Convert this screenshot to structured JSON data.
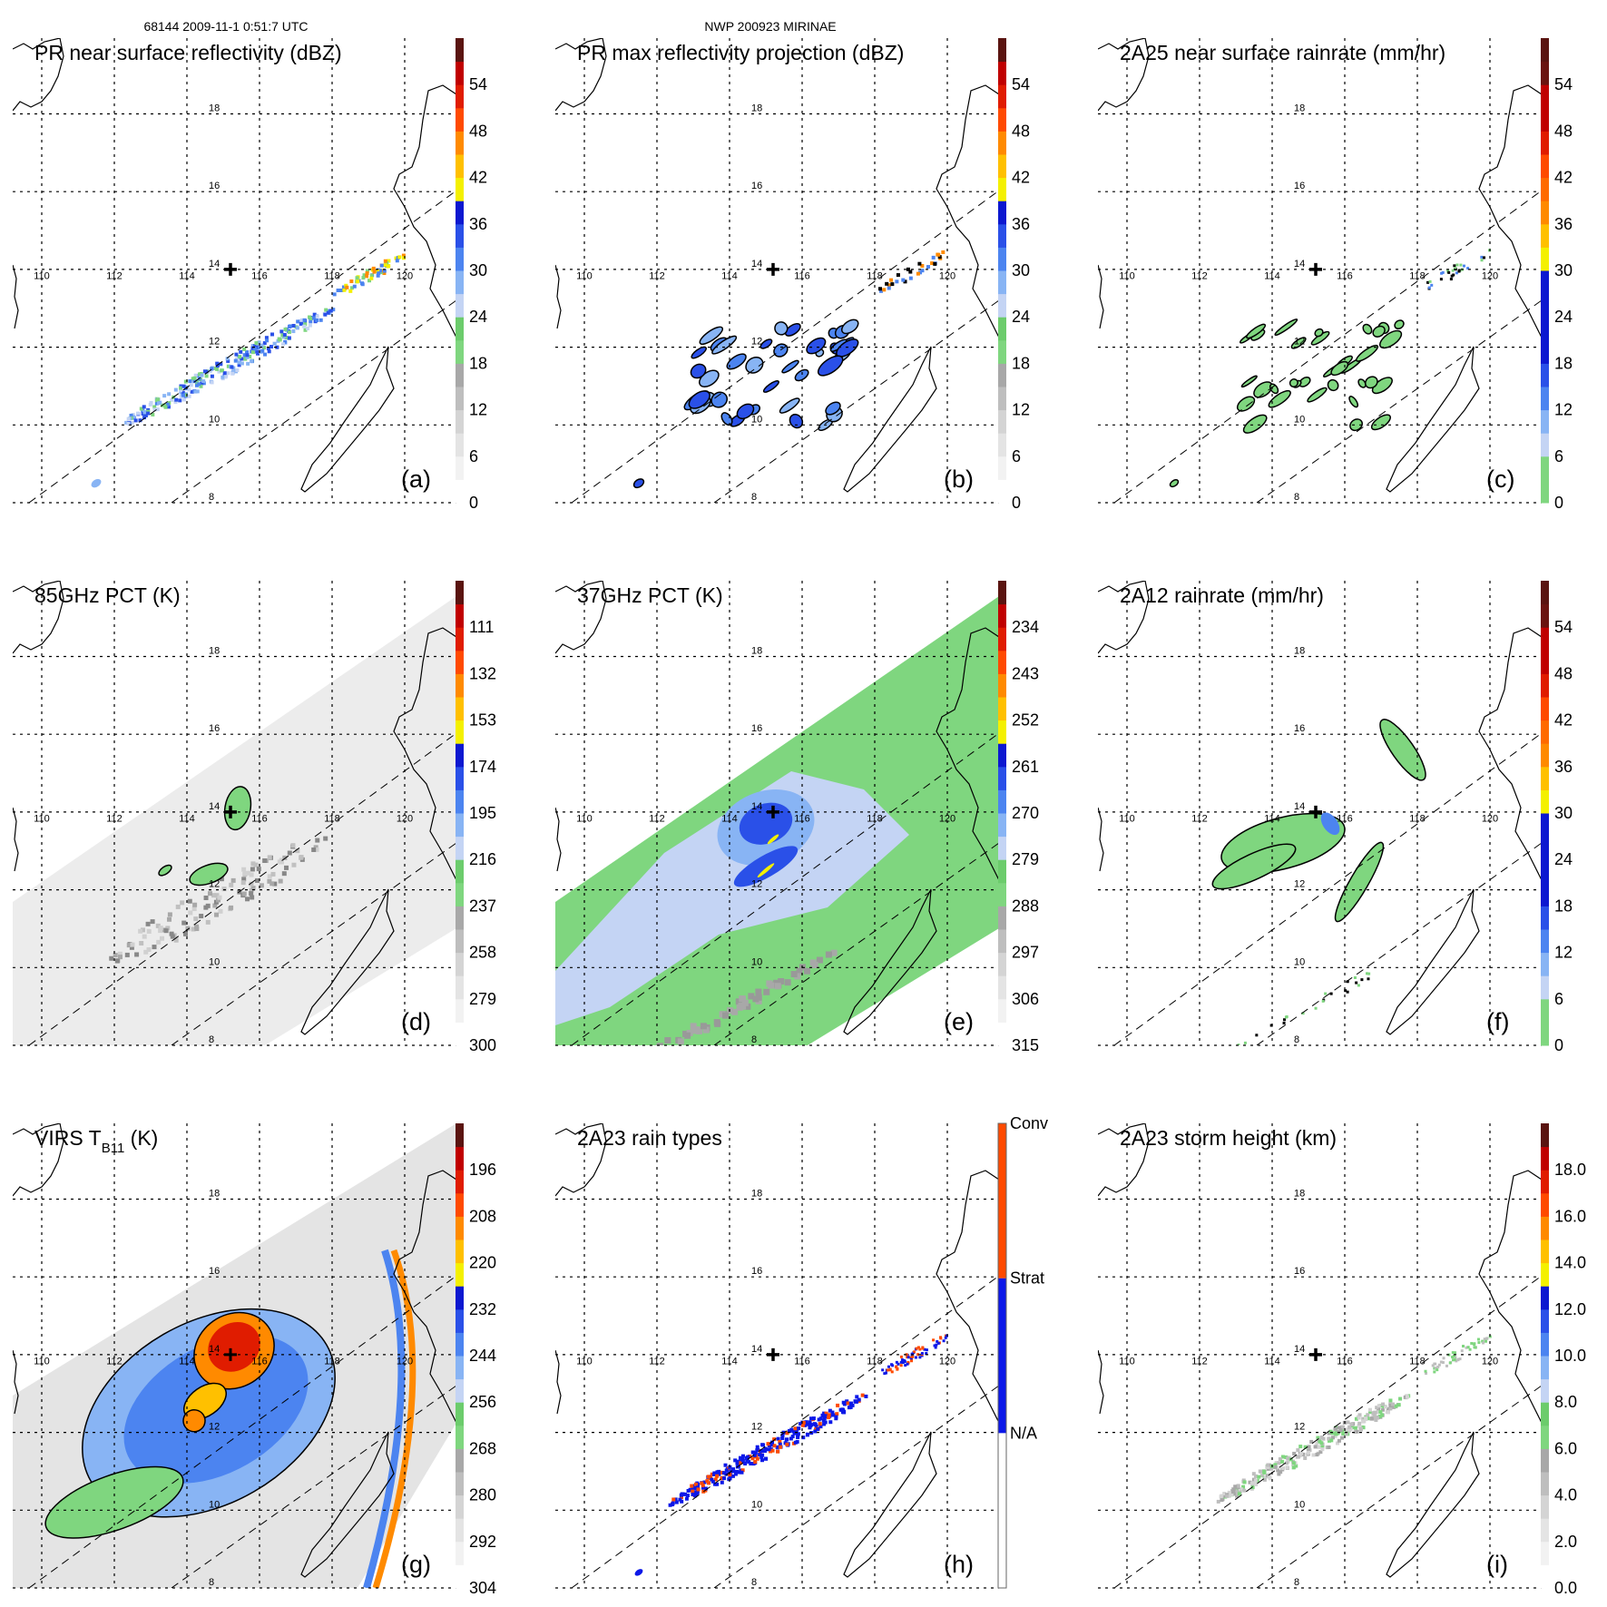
{
  "header": {
    "left": "68144 2009-11-1 0:51:7 UTC",
    "center": "NWP 200923 MIRINAE"
  },
  "map": {
    "lon_labels": [
      "110",
      "112",
      "114",
      "116",
      "118",
      "120"
    ],
    "lat_labels": [
      "8",
      "10",
      "12",
      "14",
      "16",
      "18"
    ],
    "storm_center": {
      "lon": 115.2,
      "lat": 14.0
    }
  },
  "panels": [
    {
      "id": "a",
      "title": "PR near surface reflectivity (dBZ)",
      "letter": "(a)",
      "palette": "std",
      "ticks": [
        "0",
        "6",
        "12",
        "18",
        "24",
        "30",
        "36",
        "42",
        "48",
        "54"
      ]
    },
    {
      "id": "b",
      "title": "PR max reflectivity projection (dBZ)",
      "letter": "(b)",
      "palette": "std",
      "ticks": [
        "0",
        "6",
        "12",
        "18",
        "24",
        "30",
        "36",
        "42",
        "48",
        "54"
      ]
    },
    {
      "id": "c",
      "title": "2A25 near surface rainrate (mm/hr)",
      "letter": "(c)",
      "palette": "rain",
      "ticks": [
        "0",
        "6",
        "12",
        "18",
        "24",
        "30",
        "36",
        "42",
        "48",
        "54"
      ]
    },
    {
      "id": "d",
      "title": "85GHz PCT (K)",
      "letter": "(d)",
      "palette": "std",
      "ticks": [
        "300",
        "279",
        "258",
        "237",
        "216",
        "195",
        "174",
        "153",
        "132",
        "111"
      ]
    },
    {
      "id": "e",
      "title": "37GHz PCT (K)",
      "letter": "(e)",
      "palette": "std",
      "ticks": [
        "315",
        "306",
        "297",
        "288",
        "279",
        "270",
        "261",
        "252",
        "243",
        "234"
      ]
    },
    {
      "id": "f",
      "title": "2A12 rainrate (mm/hr)",
      "letter": "(f)",
      "palette": "rain",
      "ticks": [
        "0",
        "6",
        "12",
        "18",
        "24",
        "30",
        "36",
        "42",
        "48",
        "54"
      ]
    },
    {
      "id": "g",
      "title": "VIRS T",
      "title_sub": "B11",
      "title_end": " (K)",
      "letter": "(g)",
      "palette": "std",
      "ticks": [
        "304",
        "292",
        "280",
        "268",
        "256",
        "244",
        "232",
        "220",
        "208",
        "196"
      ]
    },
    {
      "id": "h",
      "title": "2A23 rain types",
      "letter": "(h)",
      "palette": "type",
      "ticks": [
        "N/A",
        "Strat",
        "Conv"
      ]
    },
    {
      "id": "i",
      "title": "2A23 storm height (km)",
      "letter": "(i)",
      "palette": "std",
      "ticks": [
        "0.0",
        "2.0",
        "4.0",
        "6.0",
        "8.0",
        "10.0",
        "12.0",
        "14.0",
        "16.0",
        "18.0"
      ]
    }
  ],
  "colors": {
    "std": [
      "#ffffff",
      "#f2f2f2",
      "#e4e4e4",
      "#d4d4d4",
      "#bebebe",
      "#a8a8a8",
      "#7fd67f",
      "#6ccc6c",
      "#c4d4f4",
      "#88b4f4",
      "#4c84f0",
      "#2a50e8",
      "#0c18d0",
      "#f4f000",
      "#ffc000",
      "#ff8a00",
      "#ff4a00",
      "#e01c00",
      "#c00000",
      "#5a1410"
    ],
    "rain": [
      "#7fd67f",
      "#7fd67f",
      "#c4d4f4",
      "#88b4f4",
      "#4c84f0",
      "#2a50e8",
      "#0c18d0",
      "#0c18d0",
      "#0c18d0",
      "#0c18d0",
      "#f4f000",
      "#ffc000",
      "#ff8a00",
      "#ff6a00",
      "#ff4a00",
      "#e01c00",
      "#c00000",
      "#c00000",
      "#6a1410",
      "#5a1410"
    ],
    "type": [
      "#ffffff",
      "#0c18e8",
      "#ff4a00"
    ]
  }
}
